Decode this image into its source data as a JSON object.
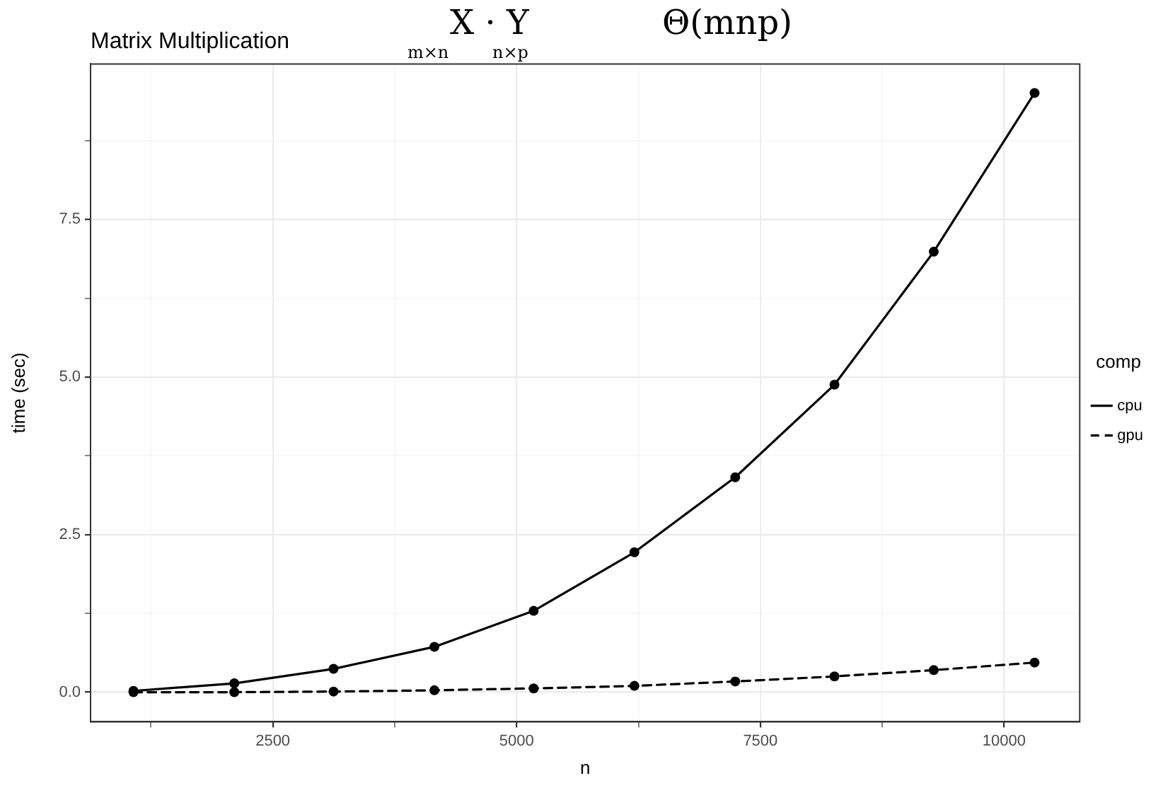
{
  "chart_data": {
    "type": "line",
    "title": "Matrix Multiplication",
    "xlabel": "n",
    "ylabel": "time (sec)",
    "legend_title": "comp",
    "annotations": [
      "X · Y",
      "m×n",
      "n×p",
      "Θ(mnp)"
    ],
    "x": [
      1071,
      2105,
      3123,
      4157,
      5175,
      6208,
      7242,
      8260,
      9278,
      10312
    ],
    "series": [
      {
        "name": "cpu",
        "color": "#000000",
        "line_style": "solid",
        "values": [
          0.02,
          0.14,
          0.37,
          0.72,
          1.29,
          2.22,
          3.41,
          4.88,
          6.99,
          9.51
        ]
      },
      {
        "name": "gpu",
        "color": "#000000",
        "line_style": "dashed",
        "values": [
          0.0,
          0.0,
          0.01,
          0.03,
          0.06,
          0.1,
          0.17,
          0.25,
          0.35,
          0.47
        ]
      }
    ],
    "xlim": [
      631,
      10775
    ],
    "ylim": [
      -0.47,
      9.97
    ],
    "xticks": [
      {
        "value": 1250,
        "label": null
      },
      2500,
      {
        "value": 3750,
        "label": null
      },
      5000,
      {
        "value": 6250,
        "label": null
      },
      7500,
      {
        "value": 8750,
        "label": null
      },
      10000
    ],
    "yticks": [
      {
        "value": 0,
        "label": "0.0"
      },
      {
        "value": 1.25,
        "label": null
      },
      2.5,
      {
        "value": 3.75,
        "label": null
      },
      {
        "value": 5,
        "label": "5.0"
      },
      {
        "value": 6.25,
        "label": null
      },
      7.5,
      {
        "value": 8.75,
        "label": null
      }
    ],
    "grid": true,
    "legend": "right",
    "marker": "circle"
  }
}
